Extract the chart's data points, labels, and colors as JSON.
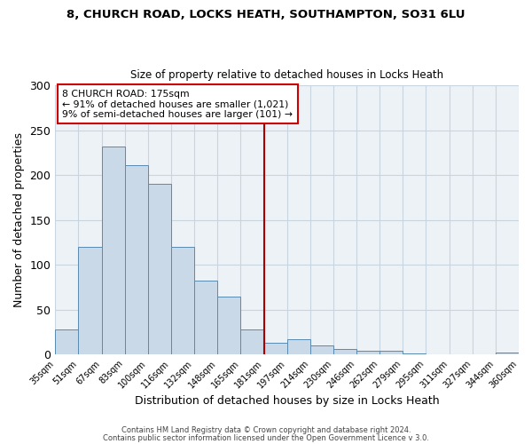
{
  "title1": "8, CHURCH ROAD, LOCKS HEATH, SOUTHAMPTON, SO31 6LU",
  "title2": "Size of property relative to detached houses in Locks Heath",
  "xlabel": "Distribution of detached houses by size in Locks Heath",
  "ylabel": "Number of detached properties",
  "footer1": "Contains HM Land Registry data © Crown copyright and database right 2024.",
  "footer2": "Contains public sector information licensed under the Open Government Licence v 3.0.",
  "bin_labels": [
    "35sqm",
    "51sqm",
    "67sqm",
    "83sqm",
    "100sqm",
    "116sqm",
    "132sqm",
    "148sqm",
    "165sqm",
    "181sqm",
    "197sqm",
    "214sqm",
    "230sqm",
    "246sqm",
    "262sqm",
    "279sqm",
    "295sqm",
    "311sqm",
    "327sqm",
    "344sqm",
    "360sqm"
  ],
  "bar_values": [
    28,
    120,
    232,
    211,
    190,
    120,
    82,
    65,
    28,
    13,
    17,
    10,
    6,
    4,
    4,
    1,
    0,
    0,
    0,
    2
  ],
  "bar_color": "#c9d9e8",
  "bar_edge_color": "#5a8ab0",
  "vline_color": "#aa0000",
  "ylim": [
    0,
    300
  ],
  "yticks": [
    0,
    50,
    100,
    150,
    200,
    250,
    300
  ],
  "annotation_title": "8 CHURCH ROAD: 175sqm",
  "annotation_line1": "← 91% of detached houses are smaller (1,021)",
  "annotation_line2": "9% of semi-detached houses are larger (101) →",
  "annotation_box_color": "#cc0000",
  "grid_color": "#c8d4de",
  "background_color": "#edf2f7"
}
